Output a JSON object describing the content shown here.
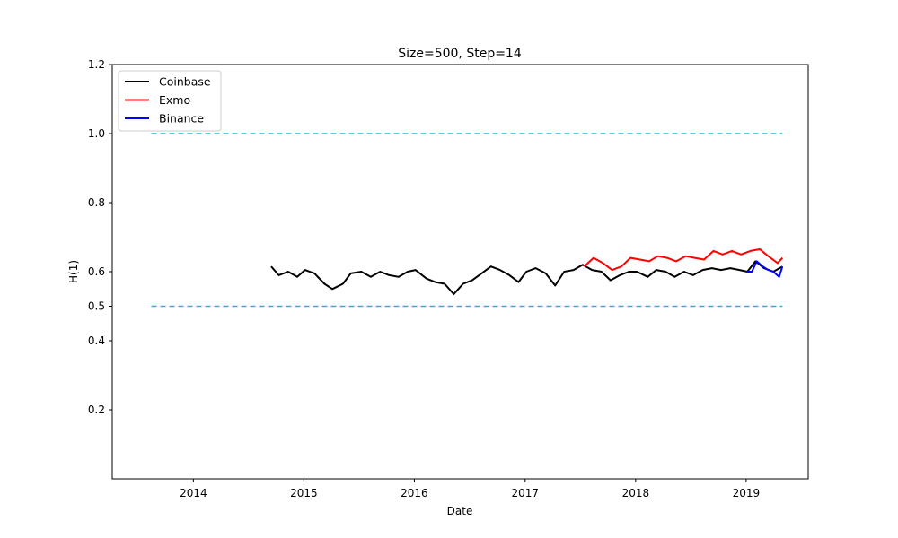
{
  "chart_data": {
    "type": "line",
    "title": "Size=500, Step=14",
    "xlabel": "Date",
    "ylabel": "H(1)",
    "xlim": [
      "2013-04-08",
      "2019-07-25"
    ],
    "ylim": [
      0.0,
      1.2
    ],
    "xticks": [
      "2014",
      "2015",
      "2016",
      "2017",
      "2018",
      "2019"
    ],
    "yticks": [
      {
        "value": 0.2,
        "label": "0.2"
      },
      {
        "value": 0.4,
        "label": "0.4"
      },
      {
        "value": 0.5,
        "label": "0.5"
      },
      {
        "value": 0.6,
        "label": "0.6"
      },
      {
        "value": 0.8,
        "label": "0.8"
      },
      {
        "value": 1.0,
        "label": "1.0"
      },
      {
        "value": 1.2,
        "label": "1.2"
      }
    ],
    "grid": false,
    "legend_position": "top-left",
    "reference_lines": [
      {
        "y": 1.0,
        "x_start": "2013-08-15",
        "x_end": "2019-05-01",
        "color": "#17becf",
        "style": "dashed"
      },
      {
        "y": 0.5,
        "x_start": "2013-08-15",
        "x_end": "2019-05-01",
        "color": "#17becf",
        "style": "dashed"
      }
    ],
    "series": [
      {
        "name": "Coinbase",
        "color": "#000000",
        "points": [
          [
            "2014-09-15",
            0.615
          ],
          [
            "2014-10-10",
            0.59
          ],
          [
            "2014-11-10",
            0.6
          ],
          [
            "2014-12-10",
            0.585
          ],
          [
            "2015-01-05",
            0.605
          ],
          [
            "2015-02-05",
            0.595
          ],
          [
            "2015-03-10",
            0.565
          ],
          [
            "2015-04-05",
            0.55
          ],
          [
            "2015-05-10",
            0.565
          ],
          [
            "2015-06-05",
            0.595
          ],
          [
            "2015-07-10",
            0.6
          ],
          [
            "2015-08-10",
            0.585
          ],
          [
            "2015-09-10",
            0.6
          ],
          [
            "2015-10-10",
            0.59
          ],
          [
            "2015-11-10",
            0.585
          ],
          [
            "2015-12-10",
            0.6
          ],
          [
            "2016-01-05",
            0.605
          ],
          [
            "2016-02-10",
            0.58
          ],
          [
            "2016-03-10",
            0.57
          ],
          [
            "2016-04-10",
            0.565
          ],
          [
            "2016-05-10",
            0.535
          ],
          [
            "2016-06-10",
            0.565
          ],
          [
            "2016-07-10",
            0.575
          ],
          [
            "2016-08-10",
            0.595
          ],
          [
            "2016-09-10",
            0.615
          ],
          [
            "2016-10-10",
            0.605
          ],
          [
            "2016-11-10",
            0.59
          ],
          [
            "2016-12-10",
            0.57
          ],
          [
            "2017-01-05",
            0.6
          ],
          [
            "2017-02-05",
            0.61
          ],
          [
            "2017-03-10",
            0.595
          ],
          [
            "2017-04-10",
            0.56
          ],
          [
            "2017-05-10",
            0.6
          ],
          [
            "2017-06-10",
            0.605
          ],
          [
            "2017-07-10",
            0.62
          ],
          [
            "2017-08-10",
            0.605
          ],
          [
            "2017-09-10",
            0.6
          ],
          [
            "2017-10-10",
            0.575
          ],
          [
            "2017-11-10",
            0.59
          ],
          [
            "2017-12-10",
            0.6
          ],
          [
            "2018-01-05",
            0.6
          ],
          [
            "2018-02-10",
            0.585
          ],
          [
            "2018-03-10",
            0.605
          ],
          [
            "2018-04-10",
            0.6
          ],
          [
            "2018-05-10",
            0.585
          ],
          [
            "2018-06-10",
            0.6
          ],
          [
            "2018-07-10",
            0.59
          ],
          [
            "2018-08-10",
            0.605
          ],
          [
            "2018-09-10",
            0.61
          ],
          [
            "2018-10-10",
            0.605
          ],
          [
            "2018-11-10",
            0.61
          ],
          [
            "2018-12-10",
            0.605
          ],
          [
            "2019-01-05",
            0.6
          ],
          [
            "2019-02-01",
            0.63
          ],
          [
            "2019-03-01",
            0.61
          ],
          [
            "2019-04-01",
            0.6
          ],
          [
            "2019-05-01",
            0.615
          ]
        ]
      },
      {
        "name": "Exmo",
        "color": "#ff0000",
        "points": [
          [
            "2017-07-15",
            0.615
          ],
          [
            "2017-08-15",
            0.64
          ],
          [
            "2017-09-15",
            0.625
          ],
          [
            "2017-10-15",
            0.605
          ],
          [
            "2017-11-15",
            0.615
          ],
          [
            "2017-12-15",
            0.64
          ],
          [
            "2018-01-15",
            0.635
          ],
          [
            "2018-02-15",
            0.63
          ],
          [
            "2018-03-15",
            0.645
          ],
          [
            "2018-04-15",
            0.64
          ],
          [
            "2018-05-15",
            0.63
          ],
          [
            "2018-06-15",
            0.645
          ],
          [
            "2018-07-15",
            0.64
          ],
          [
            "2018-08-15",
            0.635
          ],
          [
            "2018-09-15",
            0.66
          ],
          [
            "2018-10-15",
            0.65
          ],
          [
            "2018-11-15",
            0.66
          ],
          [
            "2018-12-15",
            0.65
          ],
          [
            "2019-01-15",
            0.66
          ],
          [
            "2019-02-15",
            0.665
          ],
          [
            "2019-03-15",
            0.645
          ],
          [
            "2019-04-15",
            0.625
          ],
          [
            "2019-05-01",
            0.64
          ]
        ]
      },
      {
        "name": "Binance",
        "color": "#0000ff",
        "points": [
          [
            "2019-01-01",
            0.6
          ],
          [
            "2019-01-20",
            0.6
          ],
          [
            "2019-02-05",
            0.63
          ],
          [
            "2019-02-25",
            0.615
          ],
          [
            "2019-03-15",
            0.605
          ],
          [
            "2019-04-01",
            0.6
          ],
          [
            "2019-04-20",
            0.585
          ],
          [
            "2019-05-01",
            0.615
          ]
        ]
      }
    ]
  }
}
